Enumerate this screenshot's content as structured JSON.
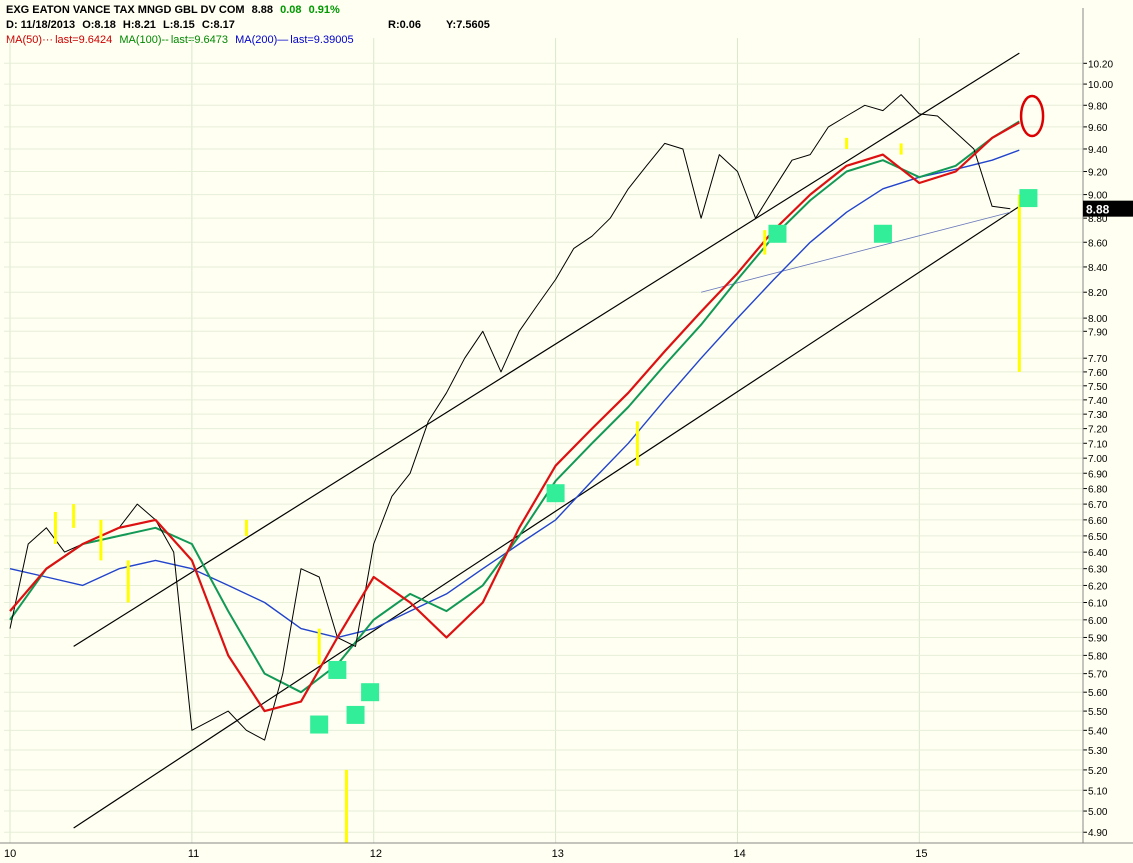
{
  "header": {
    "symbol_line": "EXG EATON VANCE TAX MNGD GBL DV COM",
    "last_price": "8.88",
    "change": "0.08",
    "change_pct": "0.91%",
    "date_label": "D: 11/18/2013",
    "open_label": "O:",
    "open_value": "8.18",
    "high_label": "H:",
    "high_value": "8.21",
    "low_label": "L:",
    "low_value": "8.15",
    "close_label": "C:",
    "close_value": "8.17",
    "r_label": "R:",
    "r_value": "0.06",
    "y_label": "Y:",
    "y_value": "7.5605",
    "ma50_label": "MA(50)",
    "ma50_last": "last=9.6424",
    "ma100_label": "MA(100)",
    "ma100_last": "last=9.6473",
    "ma200_label": "MA(200)",
    "ma200_last": "last=9.39005"
  },
  "colors": {
    "background": "#fffff2",
    "price": "#000000",
    "ma50": "#dd1111",
    "ma100": "#119955",
    "ma200": "#2244cc",
    "highlight": "#ffff00",
    "marker": "#33ee99",
    "price_box": "#000000",
    "circle": "#dd0000"
  },
  "chart_data": {
    "type": "line",
    "y_scale": "log",
    "ylim": [
      4.85,
      10.35
    ],
    "x_ticks": [
      "10",
      "11",
      "12",
      "13",
      "14",
      "15"
    ],
    "y_ticks": [
      "10.20",
      "10.00",
      "9.80",
      "9.60",
      "9.40",
      "9.20",
      "9.00",
      "8.80",
      "8.60",
      "8.40",
      "8.20",
      "8.00",
      "7.90",
      "7.70",
      "7.60",
      "7.50",
      "7.40",
      "7.30",
      "7.20",
      "7.10",
      "7.00",
      "6.90",
      "6.80",
      "6.70",
      "6.60",
      "6.50",
      "6.40",
      "6.30",
      "6.20",
      "6.10",
      "6.00",
      "5.90",
      "5.80",
      "5.70",
      "5.60",
      "5.50",
      "5.40",
      "5.30",
      "5.20",
      "5.10",
      "5.00",
      "4.90"
    ],
    "current_price": "8.88",
    "series": [
      {
        "name": "EXG",
        "t": [
          10.0,
          10.1,
          10.2,
          10.3,
          10.4,
          10.5,
          10.6,
          10.7,
          10.8,
          10.9,
          11.0,
          11.1,
          11.2,
          11.3,
          11.4,
          11.5,
          11.6,
          11.7,
          11.8,
          11.9,
          12.0,
          12.1,
          12.2,
          12.3,
          12.4,
          12.5,
          12.6,
          12.7,
          12.8,
          12.9,
          13.0,
          13.1,
          13.2,
          13.3,
          13.4,
          13.5,
          13.6,
          13.7,
          13.8,
          13.9,
          14.0,
          14.1,
          14.2,
          14.3,
          14.4,
          14.5,
          14.6,
          14.7,
          14.8,
          14.9,
          15.0,
          15.1,
          15.2,
          15.3,
          15.4,
          15.5
        ],
        "values": [
          5.95,
          6.45,
          6.55,
          6.4,
          6.45,
          6.5,
          6.55,
          6.7,
          6.6,
          6.4,
          5.4,
          5.45,
          5.5,
          5.4,
          5.35,
          5.7,
          6.3,
          6.25,
          5.9,
          5.85,
          6.45,
          6.75,
          6.9,
          7.25,
          7.45,
          7.7,
          7.9,
          7.6,
          7.9,
          8.1,
          8.3,
          8.55,
          8.65,
          8.8,
          9.05,
          9.25,
          9.45,
          9.4,
          8.8,
          9.35,
          9.2,
          8.8,
          9.05,
          9.3,
          9.35,
          9.6,
          9.7,
          9.8,
          9.75,
          9.9,
          9.72,
          9.7,
          9.55,
          9.4,
          8.9,
          8.88
        ]
      },
      {
        "name": "MA(50)",
        "t": [
          10.0,
          10.2,
          10.4,
          10.6,
          10.8,
          11.0,
          11.2,
          11.4,
          11.6,
          11.8,
          12.0,
          12.2,
          12.4,
          12.6,
          12.8,
          13.0,
          13.2,
          13.4,
          13.6,
          13.8,
          14.0,
          14.2,
          14.4,
          14.6,
          14.8,
          15.0,
          15.2,
          15.4,
          15.55
        ],
        "values": [
          6.05,
          6.3,
          6.45,
          6.55,
          6.6,
          6.35,
          5.8,
          5.5,
          5.55,
          5.9,
          6.25,
          6.1,
          5.9,
          6.1,
          6.55,
          6.95,
          7.2,
          7.45,
          7.75,
          8.05,
          8.35,
          8.7,
          9.0,
          9.25,
          9.35,
          9.1,
          9.2,
          9.5,
          9.64
        ]
      },
      {
        "name": "MA(100)",
        "t": [
          10.0,
          10.2,
          10.4,
          10.6,
          10.8,
          11.0,
          11.2,
          11.4,
          11.6,
          11.8,
          12.0,
          12.2,
          12.4,
          12.6,
          12.8,
          13.0,
          13.2,
          13.4,
          13.6,
          13.8,
          14.0,
          14.2,
          14.4,
          14.6,
          14.8,
          15.0,
          15.2,
          15.4,
          15.55
        ],
        "values": [
          6.0,
          6.3,
          6.45,
          6.5,
          6.55,
          6.45,
          6.05,
          5.7,
          5.6,
          5.75,
          6.0,
          6.15,
          6.05,
          6.2,
          6.5,
          6.85,
          7.1,
          7.35,
          7.65,
          7.95,
          8.3,
          8.65,
          8.95,
          9.2,
          9.3,
          9.15,
          9.25,
          9.5,
          9.65
        ]
      },
      {
        "name": "MA(200)",
        "t": [
          10.0,
          10.2,
          10.4,
          10.6,
          10.8,
          11.0,
          11.2,
          11.4,
          11.6,
          11.8,
          12.0,
          12.2,
          12.4,
          12.6,
          12.8,
          13.0,
          13.2,
          13.4,
          13.6,
          13.8,
          14.0,
          14.2,
          14.4,
          14.6,
          14.8,
          15.0,
          15.2,
          15.4,
          15.55
        ],
        "values": [
          6.3,
          6.25,
          6.2,
          6.3,
          6.35,
          6.3,
          6.2,
          6.1,
          5.95,
          5.9,
          5.95,
          6.05,
          6.15,
          6.3,
          6.45,
          6.6,
          6.85,
          7.1,
          7.4,
          7.7,
          8.0,
          8.3,
          8.6,
          8.85,
          9.05,
          9.15,
          9.22,
          9.3,
          9.39
        ]
      }
    ],
    "channel_lines": [
      {
        "from": [
          10.35,
          5.85
        ],
        "to": [
          15.55,
          10.3
        ]
      },
      {
        "from": [
          10.35,
          4.92
        ],
        "to": [
          15.6,
          8.95
        ]
      },
      {
        "from": [
          13.8,
          8.2
        ],
        "to": [
          15.5,
          8.85
        ]
      }
    ],
    "highlight_bars": [
      {
        "t": 10.25,
        "low": 6.45,
        "high": 6.65
      },
      {
        "t": 10.35,
        "low": 6.55,
        "high": 6.7
      },
      {
        "t": 10.5,
        "low": 6.35,
        "high": 6.6
      },
      {
        "t": 10.65,
        "low": 6.1,
        "high": 6.35
      },
      {
        "t": 11.3,
        "low": 6.5,
        "high": 6.6
      },
      {
        "t": 11.7,
        "low": 5.75,
        "high": 5.95
      },
      {
        "t": 11.85,
        "low": 4.85,
        "high": 5.2
      },
      {
        "t": 13.45,
        "low": 6.95,
        "high": 7.25
      },
      {
        "t": 14.15,
        "low": 8.5,
        "high": 8.7
      },
      {
        "t": 14.6,
        "low": 9.4,
        "high": 9.5
      },
      {
        "t": 14.9,
        "low": 9.35,
        "high": 9.45
      },
      {
        "t": 15.55,
        "low": 7.6,
        "high": 9.0
      }
    ],
    "markers": [
      {
        "t": 11.7,
        "y": 5.43
      },
      {
        "t": 11.8,
        "y": 5.72
      },
      {
        "t": 11.9,
        "y": 5.48
      },
      {
        "t": 11.98,
        "y": 5.6
      },
      {
        "t": 13.0,
        "y": 6.77
      },
      {
        "t": 14.22,
        "y": 8.67
      },
      {
        "t": 14.8,
        "y": 8.67
      },
      {
        "t": 15.6,
        "y": 8.97
      }
    ],
    "circle": {
      "t": 15.62,
      "y": 9.7
    }
  }
}
